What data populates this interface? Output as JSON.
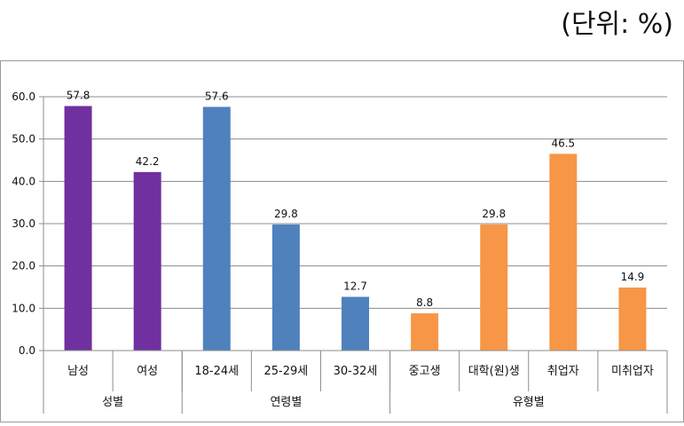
{
  "unit_note": "(단위: %)",
  "chart_data": {
    "type": "bar",
    "categories": [
      "남성",
      "여성",
      "18-24세",
      "25-29세",
      "30-32세",
      "중고생",
      "대학(원)생",
      "취업자",
      "미취업자"
    ],
    "values": [
      57.8,
      42.2,
      57.6,
      29.8,
      12.7,
      8.8,
      29.8,
      46.5,
      14.9
    ],
    "data_labels": [
      "57.8",
      "42.2",
      "57.6",
      "29.8",
      "12.7",
      "8.8",
      "29.8",
      "46.5",
      "14.9"
    ],
    "groups": [
      {
        "label": "성별",
        "count": 2,
        "color": "#7030A0"
      },
      {
        "label": "연령별",
        "count": 3,
        "color": "#4F81BD"
      },
      {
        "label": "유형별",
        "count": 4,
        "color": "#F79646"
      }
    ],
    "ylim": [
      0,
      60
    ],
    "yticks": [
      "0.0",
      "10.0",
      "20.0",
      "30.0",
      "40.0",
      "50.0",
      "60.0"
    ],
    "grid": true,
    "legend": "none"
  }
}
